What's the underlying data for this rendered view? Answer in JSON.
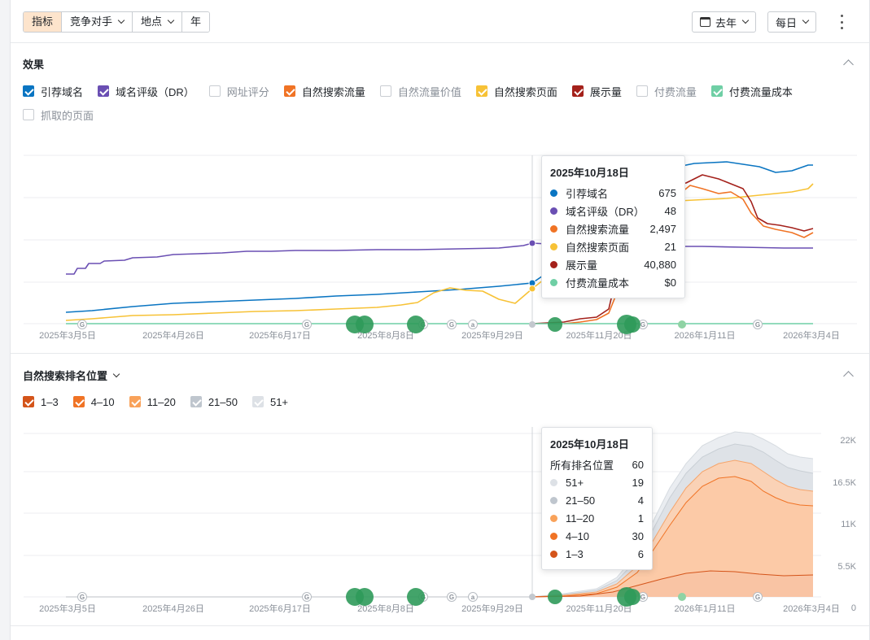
{
  "toolbar": {
    "tabs": [
      {
        "label": "指标",
        "active": true,
        "dropdown": false
      },
      {
        "label": "竞争对手",
        "active": false,
        "dropdown": true
      },
      {
        "label": "地点",
        "active": false,
        "dropdown": true
      },
      {
        "label": "年",
        "active": false,
        "dropdown": false
      }
    ],
    "period_label": "去年",
    "interval_label": "每日",
    "more_icon": "kebab-icon"
  },
  "performance": {
    "title": "效果",
    "legend": [
      {
        "label": "引荐域名",
        "checked": true,
        "color": "#0a75c2"
      },
      {
        "label": "域名评级（DR）",
        "checked": true,
        "color": "#6a4fb3"
      },
      {
        "label": "网址评分",
        "checked": false,
        "color": "#c9cdd2"
      },
      {
        "label": "自然搜索流量",
        "checked": true,
        "color": "#f07325"
      },
      {
        "label": "自然流量价值",
        "checked": false,
        "color": "#c9cdd2"
      },
      {
        "label": "自然搜索页面",
        "checked": true,
        "color": "#f7c236"
      },
      {
        "label": "展示量",
        "checked": true,
        "color": "#a4211b"
      },
      {
        "label": "付费流量",
        "checked": false,
        "color": "#c9cdd2"
      },
      {
        "label": "付费流量成本",
        "checked": true,
        "color": "#6fcfa5"
      },
      {
        "label": "抓取的页面",
        "checked": false,
        "color": "#c9cdd2"
      }
    ],
    "x_ticks": [
      "2025年3月5日",
      "2025年4月26日",
      "2025年6月17日",
      "2025年8月8日",
      "2025年9月29日",
      "2025年11月20日",
      "2026年1月11日",
      "2026年3月4日"
    ],
    "tooltip": {
      "title": "2025年10月18日",
      "rows": [
        {
          "label": "引荐域名",
          "value": "675",
          "color": "#0a75c2"
        },
        {
          "label": "域名评级（DR）",
          "value": "48",
          "color": "#6a4fb3"
        },
        {
          "label": "自然搜索流量",
          "value": "2,497",
          "color": "#f07325"
        },
        {
          "label": "自然搜索页面",
          "value": "21",
          "color": "#f7c236"
        },
        {
          "label": "展示量",
          "value": "40,880",
          "color": "#a4211b"
        },
        {
          "label": "付费流量成本",
          "value": "$0",
          "color": "#6fcfa5"
        }
      ]
    }
  },
  "rankings": {
    "title": "自然搜索排名位置",
    "legend": [
      {
        "label": "1–3",
        "checked": true,
        "color": "#d4541a"
      },
      {
        "label": "4–10",
        "checked": true,
        "color": "#f07325"
      },
      {
        "label": "11–20",
        "checked": true,
        "color": "#f9a25a"
      },
      {
        "label": "21–50",
        "checked": true,
        "color": "#bfc6ce"
      },
      {
        "label": "51+",
        "checked": true,
        "color": "#dde1e6"
      }
    ],
    "y_ticks": [
      "22K",
      "16.5K",
      "11K",
      "5.5K",
      "0"
    ],
    "x_ticks": [
      "2025年3月5日",
      "2025年4月26日",
      "2025年6月17日",
      "2025年8月8日",
      "2025年9月29日",
      "2025年11月20日",
      "2026年1月11日",
      "2026年3月4日"
    ],
    "tooltip": {
      "title": "2025年10月18日",
      "rows": [
        {
          "label": "所有排名位置",
          "value": "60",
          "color": ""
        },
        {
          "label": "51+",
          "value": "19",
          "color": "#dde1e6"
        },
        {
          "label": "21–50",
          "value": "4",
          "color": "#bfc6ce"
        },
        {
          "label": "11–20",
          "value": "1",
          "color": "#f9a25a"
        },
        {
          "label": "4–10",
          "value": "30",
          "color": "#f07325"
        },
        {
          "label": "1–3",
          "value": "6",
          "color": "#d4541a"
        }
      ]
    }
  },
  "annotations": {
    "google_marker_letter": "G",
    "ahrefs_marker_letter": "a"
  }
}
